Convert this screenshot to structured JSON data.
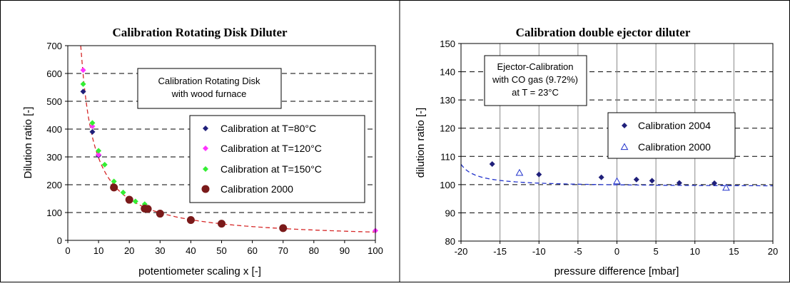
{
  "chart_data": [
    {
      "type": "scatter",
      "title": "Calibration Rotating Disk Diluter",
      "xlabel": "potentiometer scaling x  [-]",
      "ylabel": "Dilution ratio  [-]",
      "xlim": [
        0,
        100
      ],
      "ylim": [
        0,
        700
      ],
      "xticks": [
        "0",
        "10",
        "20",
        "30",
        "40",
        "50",
        "60",
        "70",
        "80",
        "90",
        "100"
      ],
      "yticks": [
        "0",
        "100",
        "200",
        "300",
        "400",
        "500",
        "600",
        "700"
      ],
      "grid": "dashed horizontal",
      "annotation": [
        "Calibration Rotating Disk",
        "with wood furnace"
      ],
      "legend_position": "right",
      "series": [
        {
          "name": "Calibration at T=80°C",
          "marker": "diamond",
          "color": "#1f1f7a",
          "points": [
            [
              5,
              535
            ],
            [
              8,
              390
            ],
            [
              10,
              305
            ],
            [
              15,
              195
            ],
            [
              20,
              150
            ],
            [
              25,
              118
            ]
          ]
        },
        {
          "name": "Calibration at T=120°C",
          "marker": "diamond",
          "color": "#ff33ff",
          "points": [
            [
              5,
              612
            ],
            [
              8,
              410
            ],
            [
              10,
              308
            ],
            [
              100,
              35
            ]
          ]
        },
        {
          "name": "Calibration at T=150°C",
          "marker": "diamond",
          "color": "#33ee33",
          "points": [
            [
              5,
              562
            ],
            [
              8,
              422
            ],
            [
              10,
              322
            ],
            [
              12,
              272
            ],
            [
              15,
              212
            ],
            [
              18,
              172
            ],
            [
              22,
              140
            ],
            [
              25,
              130
            ]
          ]
        },
        {
          "name": "Calibration 2000",
          "marker": "circle",
          "color": "#7a1a1a",
          "points": [
            [
              15,
              190
            ],
            [
              20,
              146
            ],
            [
              25,
              114
            ],
            [
              26,
              113
            ],
            [
              30,
              96
            ],
            [
              40,
              73
            ],
            [
              50,
              60
            ],
            [
              70,
              44
            ]
          ]
        }
      ],
      "fit": {
        "style": "dashed",
        "color": "#d62828",
        "model": "y = 2970 / x"
      }
    },
    {
      "type": "scatter",
      "title": "Calibration double ejector diluter",
      "xlabel": "pressure difference  [mbar]",
      "ylabel": "dilution ratio  [-]",
      "xlim": [
        -20,
        20
      ],
      "ylim": [
        80,
        150
      ],
      "xticks": [
        "-20",
        "-15",
        "-10",
        "-5",
        "0",
        "5",
        "10",
        "15",
        "20"
      ],
      "yticks": [
        "80",
        "90",
        "100",
        "110",
        "120",
        "130",
        "140",
        "150"
      ],
      "grid": "vertical solid, horizontal dashed",
      "annotation": [
        "Ejector-Calibration",
        "with CO gas  (9.72%)",
        "at T = 23°C"
      ],
      "legend_position": "right",
      "series": [
        {
          "name": "Calibration 2004",
          "marker": "diamond",
          "color": "#1f1f7a",
          "points": [
            [
              -16,
              107.3
            ],
            [
              -10,
              103.6
            ],
            [
              -2,
              102.6
            ],
            [
              2.5,
              101.8
            ],
            [
              4.5,
              101.4
            ],
            [
              8,
              100.6
            ],
            [
              12.5,
              100.5
            ]
          ]
        },
        {
          "name": "Calibration 2000",
          "marker": "triangle",
          "color": "#2233cc",
          "points": [
            [
              -12.5,
              104.2
            ],
            [
              0,
              101.2
            ],
            [
              14,
              98.9
            ]
          ]
        }
      ],
      "fit": {
        "style": "dashed",
        "color": "#2233cc",
        "model": "y = 99.2 + 16 / (x + 22)"
      }
    }
  ]
}
